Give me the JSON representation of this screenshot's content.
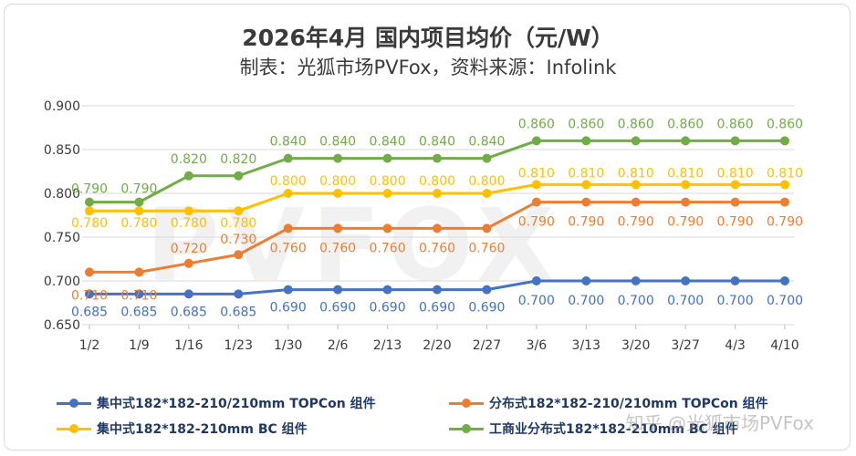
{
  "title": "2026年4月  国内项目均价（元/W）",
  "subtitle": "制表：光狐市场PVFox，资料来源：Infolink",
  "watermark": "知乎 @光狐市场PVFox",
  "bigmark": "PVFOX",
  "chart_data": {
    "type": "line",
    "categories": [
      "1/2",
      "1/9",
      "1/16",
      "1/23",
      "1/30",
      "2/6",
      "2/13",
      "2/20",
      "2/27",
      "3/6",
      "3/13",
      "3/20",
      "3/27",
      "4/3",
      "4/10"
    ],
    "ylim": [
      0.65,
      0.9
    ],
    "yticks": [
      "0.650",
      "0.700",
      "0.750",
      "0.800",
      "0.850",
      "0.900"
    ],
    "grid": true,
    "legend_position": "bottom",
    "series": [
      {
        "name": "集中式182*182-210/210mm TOPCon 组件",
        "color": "#4472c4",
        "values": [
          0.685,
          0.685,
          0.685,
          0.685,
          0.69,
          0.69,
          0.69,
          0.69,
          0.69,
          0.7,
          0.7,
          0.7,
          0.7,
          0.7,
          0.7
        ],
        "labels": [
          "0.685",
          "0.685",
          "0.685",
          "0.685",
          "0.690",
          "0.690",
          "0.690",
          "0.690",
          "0.690",
          "0.700",
          "0.700",
          "0.700",
          "0.700",
          "0.700",
          "0.700"
        ]
      },
      {
        "name": "分布式182*182-210/210mm TOPCon 组件",
        "color": "#ed7d31",
        "values": [
          0.71,
          0.71,
          0.72,
          0.73,
          0.76,
          0.76,
          0.76,
          0.76,
          0.76,
          0.79,
          0.79,
          0.79,
          0.79,
          0.79,
          0.79
        ],
        "labels": [
          "0.710",
          "0.710",
          "0.720",
          "0.730",
          "0.760",
          "0.760",
          "0.760",
          "0.760",
          "0.760",
          "0.790",
          "0.790",
          "0.790",
          "0.790",
          "0.790",
          "0.790"
        ]
      },
      {
        "name": "集中式182*182-210mm BC 组件",
        "color": "#ffc000",
        "values": [
          0.78,
          0.78,
          0.78,
          0.78,
          0.8,
          0.8,
          0.8,
          0.8,
          0.8,
          0.81,
          0.81,
          0.81,
          0.81,
          0.81,
          0.81
        ],
        "labels": [
          "0.780",
          "0.780",
          "0.780",
          "0.780",
          "0.800",
          "0.800",
          "0.800",
          "0.800",
          "0.800",
          "0.810",
          "0.810",
          "0.810",
          "0.810",
          "0.810",
          "0.810"
        ]
      },
      {
        "name": "工商业分布式182*182-210mm BC 组件",
        "color": "#70ad47",
        "values": [
          0.79,
          0.79,
          0.82,
          0.82,
          0.84,
          0.84,
          0.84,
          0.84,
          0.84,
          0.86,
          0.86,
          0.86,
          0.86,
          0.86,
          0.86
        ],
        "labels": [
          "0.790",
          "0.790",
          "0.820",
          "0.820",
          "0.840",
          "0.840",
          "0.840",
          "0.840",
          "0.840",
          "0.860",
          "0.860",
          "0.860",
          "0.860",
          "0.860",
          "0.860"
        ]
      }
    ]
  }
}
